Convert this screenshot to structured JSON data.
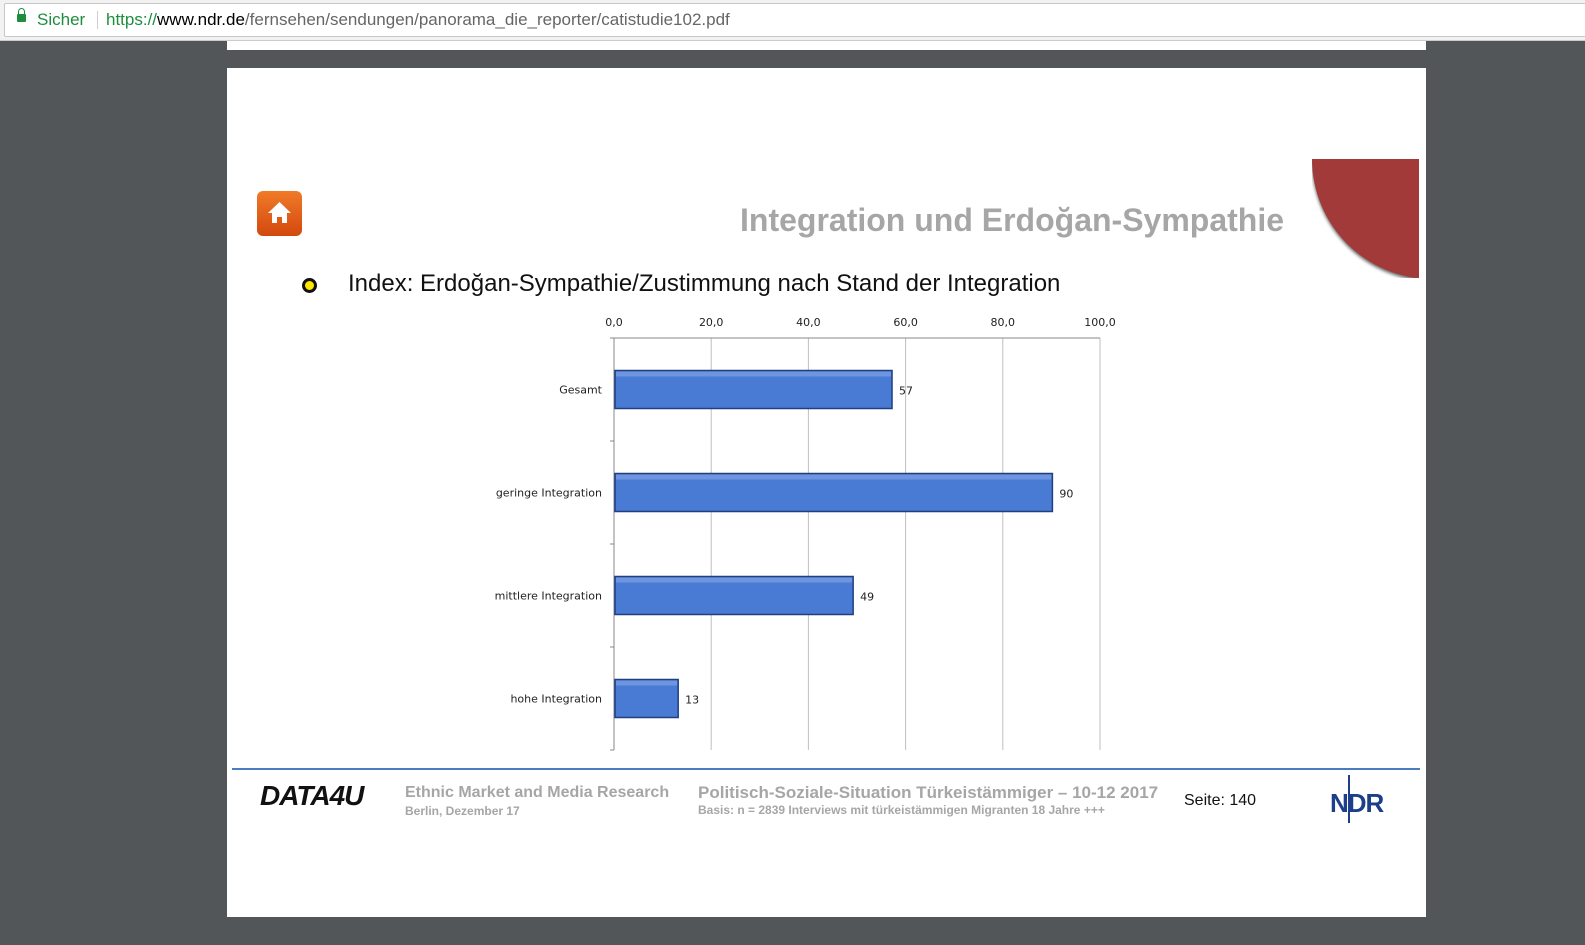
{
  "browser": {
    "secure_label": "Sicher",
    "url_scheme": "https://",
    "url_host": "www.ndr.de",
    "url_path": "/fernsehen/sendungen/panorama_die_reporter/catistudie102.pdf"
  },
  "slide": {
    "title": "Integration und Erdoğan-Sympathie",
    "subtitle": "Index: Erdoğan-Sympathie/Zustimmung nach Stand der Integration"
  },
  "footer": {
    "logo": "DATA4U",
    "company": "Ethnic Market and Media Research",
    "place_date": "Berlin, Dezember 17",
    "study": "Politisch-Soziale-Situation Türkeistämmiger – 10-12 2017",
    "basis": "Basis: n = 2839 Interviews mit türkeistämmigen Migranten 18 Jahre +++",
    "page": "Seite: 140",
    "ndr_logo": "NDR"
  },
  "colors": {
    "bar": "#4a7bd4",
    "accent": "#a23a3a"
  },
  "chart_data": {
    "type": "bar",
    "orientation": "horizontal",
    "categories": [
      "Gesamt",
      "geringe Integration",
      "mittlere Integration",
      "hohe Integration"
    ],
    "values": [
      57,
      90,
      49,
      13
    ],
    "xlim": [
      0,
      100
    ],
    "xticks": [
      "0,0",
      "20,0",
      "40,0",
      "60,0",
      "80,0",
      "100,0"
    ],
    "xtick_values": [
      0,
      20,
      40,
      60,
      80,
      100
    ],
    "grid": true,
    "title": "",
    "xlabel": "",
    "ylabel": ""
  }
}
